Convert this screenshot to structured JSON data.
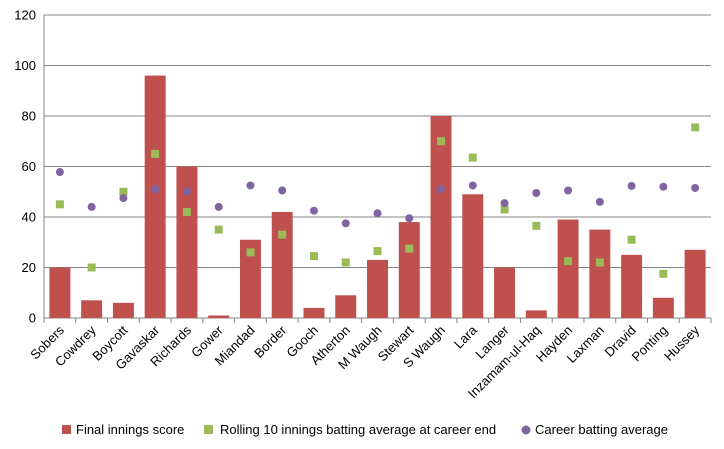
{
  "chart_data": {
    "type": "bar",
    "title": "",
    "xlabel": "",
    "ylabel": "",
    "ylim": [
      0,
      120
    ],
    "yticks": [
      0,
      20,
      40,
      60,
      80,
      100,
      120
    ],
    "grid": true,
    "legend_position": "bottom",
    "categories": [
      "Sobers",
      "Cowdrey",
      "Boycott",
      "Gavaskar",
      "Richards",
      "Gower",
      "Miandad",
      "Border",
      "Gooch",
      "Atherton",
      "M Waugh",
      "Stewart",
      "S Waugh",
      "Lara",
      "Langer",
      "Inzamam-ul-Haq",
      "Hayden",
      "Laxman",
      "Dravid",
      "Ponting",
      "Hussey"
    ],
    "series": [
      {
        "name": "Final innings score",
        "kind": "bar",
        "color": "#C0504D",
        "values": [
          20,
          7,
          6,
          96,
          60,
          1,
          31,
          42,
          4,
          9,
          23,
          38,
          80,
          49,
          20,
          3,
          39,
          35,
          25,
          8,
          27
        ]
      },
      {
        "name": "Rolling 10 innings batting average at career end",
        "kind": "square-marker",
        "color": "#9BBB59",
        "values": [
          45,
          20,
          50,
          65,
          42,
          35,
          26,
          33,
          24.5,
          22,
          26.5,
          27.5,
          70,
          63.5,
          43,
          36.5,
          22.5,
          22,
          31,
          17.5,
          75.5
        ]
      },
      {
        "name": "Career batting average",
        "kind": "circle-marker",
        "color": "#8064A2",
        "values": [
          57.8,
          44,
          47.5,
          51,
          50.2,
          44,
          52.5,
          50.5,
          42.5,
          37.5,
          41.5,
          39.5,
          51,
          52.5,
          45.5,
          49.5,
          50.5,
          46,
          52.3,
          52,
          51.5
        ]
      }
    ]
  }
}
